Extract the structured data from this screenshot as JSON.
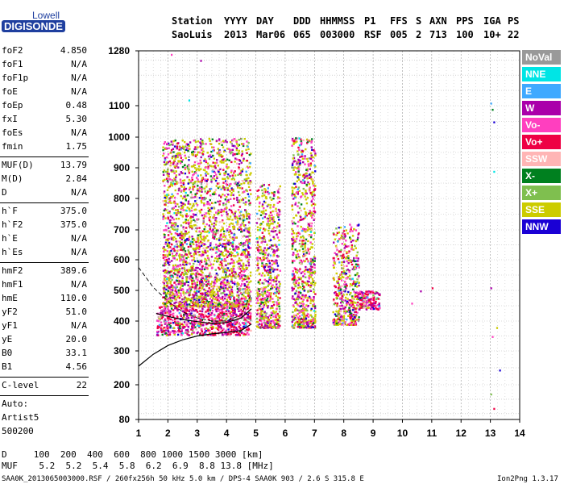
{
  "logo": {
    "top": "Lowell",
    "bottom": "DIGISONDE"
  },
  "header": {
    "row1": [
      "Station",
      "YYYY",
      "DAY",
      "DDD",
      "HHMMSS",
      "P1",
      "FFS",
      "S",
      "AXN",
      "PPS",
      "IGA",
      "PS"
    ],
    "row2": [
      "SaoLuis",
      "2013",
      "Mar06",
      "065",
      "003000",
      "RSF",
      "005",
      "2",
      "713",
      "100",
      "10+",
      "22"
    ]
  },
  "parameters": {
    "group1": [
      {
        "name": "foF2",
        "value": "4.850"
      },
      {
        "name": "foF1",
        "value": "N/A"
      },
      {
        "name": "foF1p",
        "value": "N/A"
      },
      {
        "name": "foE",
        "value": "N/A"
      },
      {
        "name": "foEp",
        "value": "0.48"
      },
      {
        "name": "fxI",
        "value": "5.30"
      },
      {
        "name": "foEs",
        "value": "N/A"
      },
      {
        "name": "fmin",
        "value": "1.75"
      }
    ],
    "group2": [
      {
        "name": "MUF(D)",
        "value": "13.79"
      },
      {
        "name": "M(D)",
        "value": "2.84"
      },
      {
        "name": "D",
        "value": "N/A"
      }
    ],
    "group3": [
      {
        "name": "h`F",
        "value": "375.0"
      },
      {
        "name": "h`F2",
        "value": "375.0"
      },
      {
        "name": "h`E",
        "value": "N/A"
      },
      {
        "name": "h`Es",
        "value": "N/A"
      }
    ],
    "group4": [
      {
        "name": "hmF2",
        "value": "389.6"
      },
      {
        "name": "hmF1",
        "value": "N/A"
      },
      {
        "name": "hmE",
        "value": "110.0"
      },
      {
        "name": "yF2",
        "value": "51.0"
      },
      {
        "name": "yF1",
        "value": "N/A"
      },
      {
        "name": "yE",
        "value": "20.0"
      },
      {
        "name": "B0",
        "value": "33.1"
      },
      {
        "name": "B1",
        "value": "4.56"
      }
    ],
    "group5": [
      {
        "name": "C-level",
        "value": "22"
      }
    ],
    "auto": [
      "Auto:",
      "Artist5",
      "500200"
    ]
  },
  "legend": [
    {
      "label": "NoVal",
      "color": "#999999"
    },
    {
      "label": "NNE",
      "color": "#00e5e5"
    },
    {
      "label": "E",
      "color": "#3fa9ff"
    },
    {
      "label": "W",
      "color": "#aa00aa"
    },
    {
      "label": "Vo-",
      "color": "#ff3fbf"
    },
    {
      "label": "Vo+",
      "color": "#ee0044"
    },
    {
      "label": "SSW",
      "color": "#ffb5b5"
    },
    {
      "label": "X-",
      "color": "#00801f"
    },
    {
      "label": "X+",
      "color": "#7fbf4f"
    },
    {
      "label": "SSE",
      "color": "#cccc00"
    },
    {
      "label": "NNW",
      "color": "#1a00d5"
    }
  ],
  "footer": {
    "d_row": "D     100  200  400  600  800 1000 1500 3000 [km]",
    "muf_row": "MUF    5.2  5.2  5.4  5.8  6.2  6.9  8.8 13.8 [MHz]",
    "file_info": "SAA0K_2013065003000.RSF / 260fx256h 50 kHz 5.0 km / DPS-4 SAA0K 903 / 2.6 S 315.8 E",
    "version": "Ion2Png 1.3.17"
  },
  "chart_data": {
    "type": "scatter",
    "xlabel": "",
    "ylabel": "",
    "x_ticks": [
      1,
      2,
      3,
      4,
      5,
      6,
      7,
      8,
      9,
      10,
      11,
      12,
      13,
      14
    ],
    "y_ticks": [
      80,
      200,
      300,
      400,
      500,
      600,
      700,
      800,
      900,
      1000,
      1100,
      1280
    ],
    "xlim": [
      1,
      14
    ],
    "ylim": [
      80,
      1280
    ],
    "grid": true,
    "echo_clusters": [
      {
        "mode": "F-trace",
        "x_range": [
          1.6,
          4.8
        ],
        "y_range": [
          355,
          450
        ]
      },
      {
        "mode": "F-spread",
        "x_range": [
          1.8,
          4.8
        ],
        "y_range": [
          450,
          1000
        ]
      },
      {
        "mode": "F-spread",
        "x_range": [
          5.0,
          5.8
        ],
        "y_range": [
          380,
          850
        ]
      },
      {
        "mode": "F-spread",
        "x_range": [
          6.2,
          7.0
        ],
        "y_range": [
          380,
          1000
        ]
      },
      {
        "mode": "F-spread",
        "x_range": [
          7.6,
          8.5
        ],
        "y_range": [
          390,
          720
        ]
      },
      {
        "mode": "F-trace",
        "x_range": [
          8.5,
          9.2
        ],
        "y_range": [
          440,
          500
        ]
      }
    ],
    "profile_curve": [
      [
        1,
        255
      ],
      [
        1.5,
        290
      ],
      [
        2,
        318
      ],
      [
        2.5,
        337
      ],
      [
        3,
        350
      ],
      [
        3.5,
        357
      ],
      [
        4,
        362
      ],
      [
        4.5,
        368
      ],
      [
        4.85,
        390
      ]
    ],
    "dashed_curve": [
      [
        1,
        575
      ],
      [
        1.5,
        510
      ],
      [
        2,
        465
      ],
      [
        2.5,
        430
      ],
      [
        3,
        410
      ],
      [
        3.5,
        400
      ],
      [
        4,
        400
      ],
      [
        4.5,
        420
      ],
      [
        4.85,
        490
      ]
    ],
    "virtual_trace": [
      [
        1.6,
        425
      ],
      [
        2,
        415
      ],
      [
        2.5,
        405
      ],
      [
        3,
        398
      ],
      [
        3.5,
        392
      ],
      [
        4,
        395
      ],
      [
        4.5,
        410
      ],
      [
        4.85,
        440
      ]
    ]
  }
}
